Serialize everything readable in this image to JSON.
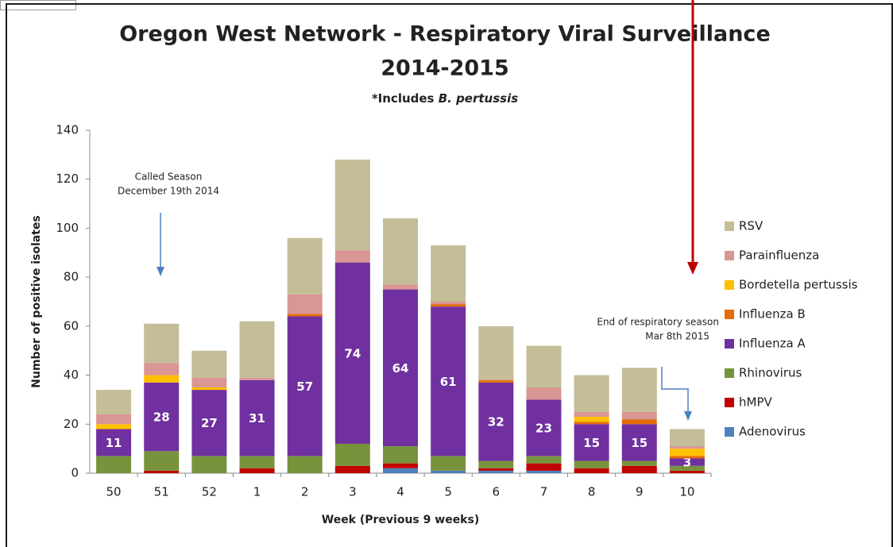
{
  "chart_data": {
    "type": "stacked_bar",
    "title": [
      "Oregon West Network - Respiratory Viral Surveillance",
      "2014-2015"
    ],
    "subtitle": [
      "*Includes ",
      "B. pertussis"
    ],
    "x_label": "Week (Previous 9 weeks)",
    "y_label": "Number of positive isolates",
    "categories": [
      "50",
      "51",
      "52",
      "1",
      "2",
      "3",
      "4",
      "5",
      "6",
      "7",
      "8",
      "9",
      "10"
    ],
    "series": [
      {
        "name": "Adenovirus",
        "color": "#4f81bd",
        "values": [
          0,
          0,
          0,
          0,
          0,
          0,
          2,
          1,
          1,
          1,
          0,
          0,
          0
        ]
      },
      {
        "name": "hMPV",
        "color": "#c00000",
        "values": [
          0,
          1,
          0,
          2,
          0,
          3,
          2,
          0,
          1,
          3,
          2,
          3,
          1
        ]
      },
      {
        "name": "Rhinovirus",
        "color": "#77933c",
        "values": [
          7,
          8,
          7,
          5,
          7,
          9,
          7,
          6,
          3,
          3,
          3,
          2,
          2
        ]
      },
      {
        "name": "Influenza A",
        "color": "#7030a0",
        "values": [
          11,
          28,
          27,
          31,
          57,
          74,
          64,
          61,
          32,
          23,
          15,
          15,
          3
        ],
        "data_labels": true
      },
      {
        "name": "Influenza B",
        "color": "#e46c0a",
        "values": [
          0,
          0,
          0,
          0,
          1,
          0,
          0,
          1,
          1,
          0,
          1,
          2,
          1
        ]
      },
      {
        "name": "Bordetella pertussis",
        "color": "#ffc000",
        "values": [
          2,
          3,
          1,
          0,
          0,
          0,
          0,
          0,
          0,
          0,
          2,
          0,
          3
        ]
      },
      {
        "name": "Parainfluenza",
        "color": "#d99694",
        "values": [
          4,
          5,
          4,
          1,
          8,
          5,
          2,
          1,
          0,
          5,
          2,
          3,
          1
        ]
      },
      {
        "name": "RSV",
        "color": "#c4bd97",
        "values": [
          10,
          16,
          11,
          23,
          23,
          37,
          27,
          23,
          22,
          17,
          15,
          18,
          7
        ]
      }
    ],
    "ylim": [
      0,
      140
    ],
    "yticks": [
      0,
      20,
      40,
      60,
      80,
      100,
      120,
      140
    ],
    "annotations": [
      [
        "Called Season",
        "December 19th 2014"
      ],
      [
        "End of respiratory season",
        "Mar 8th 2015"
      ]
    ]
  }
}
